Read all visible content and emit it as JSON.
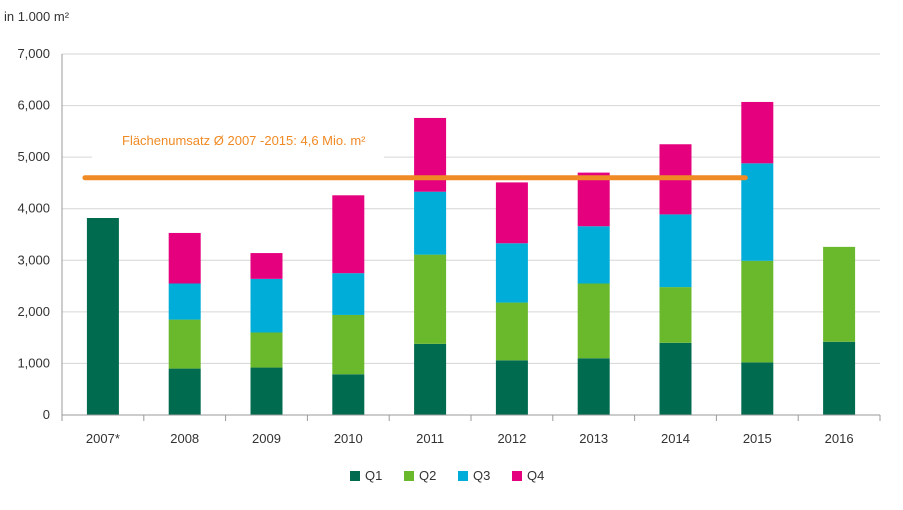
{
  "chart_data": {
    "type": "bar",
    "stacked": true,
    "unit_label": "in 1.000 m²",
    "categories": [
      "2007*",
      "2008",
      "2009",
      "2010",
      "2011",
      "2012",
      "2013",
      "2014",
      "2015",
      "2016"
    ],
    "series": [
      {
        "name": "Q1",
        "color": "#006b4f",
        "values": [
          3820,
          900,
          920,
          790,
          1380,
          1060,
          1100,
          1400,
          1020,
          1420
        ]
      },
      {
        "name": "Q2",
        "color": "#6ab92d",
        "values": [
          0,
          950,
          680,
          1150,
          1730,
          1120,
          1450,
          1080,
          1970,
          1840
        ]
      },
      {
        "name": "Q3",
        "color": "#00acd8",
        "values": [
          0,
          700,
          1040,
          810,
          1220,
          1150,
          1110,
          1410,
          1890,
          0
        ]
      },
      {
        "name": "Q4",
        "color": "#e5007e",
        "values": [
          0,
          980,
          500,
          1510,
          1430,
          1180,
          1040,
          1360,
          1190,
          0
        ]
      }
    ],
    "y_ticks": [
      "0",
      "1,000",
      "2,000",
      "3,000",
      "4,000",
      "5,000",
      "6,000",
      "7,000"
    ],
    "ylim": [
      0,
      7000
    ],
    "grid": true,
    "legend_position": "bottom-center",
    "average_line": {
      "label": "Flächenumsatz Ø 2007 -2015: 4,6 Mio. m²",
      "value": 4600,
      "from_category": "2007*",
      "to_category": "2015",
      "color": "#f08a24"
    }
  }
}
